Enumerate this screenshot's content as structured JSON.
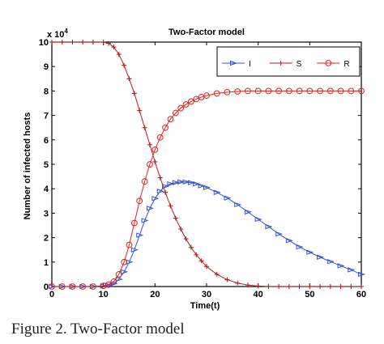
{
  "caption": "Figure 2. Two-Factor model",
  "chart_data": {
    "type": "line",
    "title": "Two-Factor model",
    "xlabel": "Time(t)",
    "ylabel": "Number of infected hosts",
    "y_exponent": "x 10",
    "y_exponent_power": "4",
    "xlim": [
      0,
      60
    ],
    "ylim": [
      0,
      10
    ],
    "xticks": [
      "0",
      "10",
      "20",
      "30",
      "40",
      "50",
      "60"
    ],
    "yticks": [
      "0",
      "1",
      "2",
      "3",
      "4",
      "5",
      "6",
      "7",
      "8",
      "9",
      "10"
    ],
    "legend_position": "top-right",
    "x": [
      0,
      2,
      4,
      6,
      8,
      10,
      11,
      12,
      13,
      14,
      15,
      16,
      17,
      18,
      19,
      20,
      21,
      22,
      23,
      24,
      25,
      26,
      27,
      28,
      29,
      30,
      32,
      34,
      36,
      38,
      40,
      42,
      44,
      46,
      48,
      50,
      52,
      54,
      56,
      58,
      60
    ],
    "series": [
      {
        "name": "I",
        "color": "#3355cc",
        "marker": "triangle",
        "values": [
          0,
          0,
          0,
          0,
          0,
          0.02,
          0.05,
          0.12,
          0.3,
          0.6,
          1.0,
          1.5,
          2.1,
          2.7,
          3.2,
          3.6,
          3.9,
          4.1,
          4.2,
          4.25,
          4.28,
          4.28,
          4.25,
          4.2,
          4.12,
          4.05,
          3.85,
          3.62,
          3.35,
          3.05,
          2.75,
          2.45,
          2.15,
          1.88,
          1.62,
          1.4,
          1.2,
          1.02,
          0.85,
          0.68,
          0.5
        ]
      },
      {
        "name": "S",
        "color": "#aa2222",
        "marker": "plus",
        "values": [
          10,
          10,
          10,
          10,
          10,
          10,
          9.95,
          9.8,
          9.5,
          9.05,
          8.5,
          7.9,
          7.2,
          6.5,
          5.8,
          5.1,
          4.45,
          3.85,
          3.3,
          2.8,
          2.35,
          1.95,
          1.6,
          1.3,
          1.05,
          0.82,
          0.5,
          0.28,
          0.14,
          0.06,
          0.02,
          0,
          0,
          0,
          0,
          0,
          0,
          0,
          0,
          0,
          0
        ]
      },
      {
        "name": "R",
        "color": "#dd2222",
        "marker": "circle",
        "values": [
          0,
          0,
          0,
          0,
          0,
          0.03,
          0.08,
          0.2,
          0.5,
          1.0,
          1.7,
          2.6,
          3.5,
          4.3,
          5.0,
          5.6,
          6.1,
          6.5,
          6.85,
          7.1,
          7.3,
          7.45,
          7.57,
          7.67,
          7.75,
          7.81,
          7.9,
          7.95,
          7.98,
          8.0,
          8.0,
          8.0,
          8.0,
          8.0,
          8.0,
          8.0,
          8.0,
          8.0,
          8.0,
          8.0,
          8.0
        ]
      }
    ]
  }
}
